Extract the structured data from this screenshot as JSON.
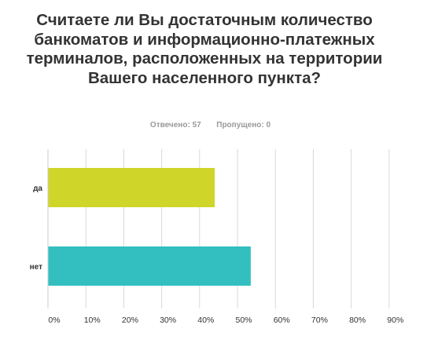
{
  "question": {
    "title": "Считаете ли Вы достаточным количество банкоматов и информационно-платежных терминалов, расположенных на территории Вашего населенного пункта?"
  },
  "stats": {
    "answered_label": "Отвечено:",
    "answered_value": "57",
    "skipped_label": "Пропущено:",
    "skipped_value": "0"
  },
  "colors": {
    "bar_yes": "#d0d52a",
    "bar_no": "#33bfc0",
    "grid": "#d8d8d8",
    "text": "#333333"
  },
  "chart_data": {
    "type": "bar",
    "orientation": "horizontal",
    "categories": [
      "да",
      "нет"
    ],
    "values": [
      44.0,
      53.5
    ],
    "xlim": [
      0,
      90
    ],
    "xticks": [
      "0%",
      "10%",
      "20%",
      "30%",
      "40%",
      "50%",
      "60%",
      "70%",
      "80%",
      "90%"
    ],
    "grid": true,
    "legend": "none"
  }
}
